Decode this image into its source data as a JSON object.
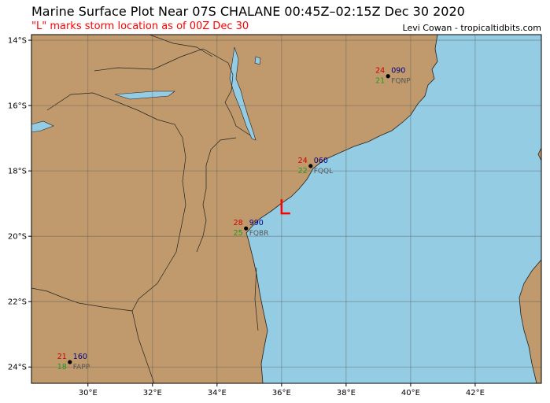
{
  "header": {
    "title": "Marine Surface Plot Near 07S CHALANE 00:45Z–02:15Z Dec 30 2020",
    "subtitle": "\"L\" marks storm location as of 00Z Dec 30",
    "credit": "Levi Cowan - tropicaltidbits.com"
  },
  "map": {
    "lon_range": [
      28.25,
      44.05
    ],
    "lat_range": [
      -24.5,
      -13.83
    ],
    "land_color": "#c09a6c",
    "ocean_color": "#94cce4",
    "lat_ticks": [
      {
        "v": -14,
        "label": "14°S"
      },
      {
        "v": -16,
        "label": "16°S"
      },
      {
        "v": -18,
        "label": "18°S"
      },
      {
        "v": -20,
        "label": "20°S"
      },
      {
        "v": -22,
        "label": "22°S"
      },
      {
        "v": -24,
        "label": "24°S"
      }
    ],
    "lon_ticks": [
      {
        "v": 30,
        "label": "30°E"
      },
      {
        "v": 32,
        "label": "32°E"
      },
      {
        "v": 34,
        "label": "34°E"
      },
      {
        "v": 36,
        "label": "36°E"
      },
      {
        "v": 38,
        "label": "38°E"
      },
      {
        "v": 40,
        "label": "40°E"
      },
      {
        "v": 42,
        "label": "42°E"
      }
    ],
    "storm_marker": {
      "label": "L",
      "lat": -19.3,
      "lon": 36.0,
      "color": "#ff0000"
    },
    "stations": [
      {
        "id": "FQNP",
        "lat": -15.1,
        "lon": 39.3,
        "temp": "24",
        "dew": "21",
        "pressure": "090"
      },
      {
        "id": "FQQL",
        "lat": -17.85,
        "lon": 36.9,
        "temp": "24",
        "dew": "22",
        "pressure": "060"
      },
      {
        "id": "FQBR",
        "lat": -19.76,
        "lon": 34.9,
        "temp": "28",
        "dew": "25",
        "pressure": "990"
      },
      {
        "id": "FAPP",
        "lat": -23.85,
        "lon": 29.44,
        "temp": "21",
        "dew": "18",
        "pressure": "160"
      }
    ],
    "colors": {
      "temp": "#cc0000",
      "dew": "#229922",
      "pressure": "#000080",
      "id": "#555555"
    }
  }
}
